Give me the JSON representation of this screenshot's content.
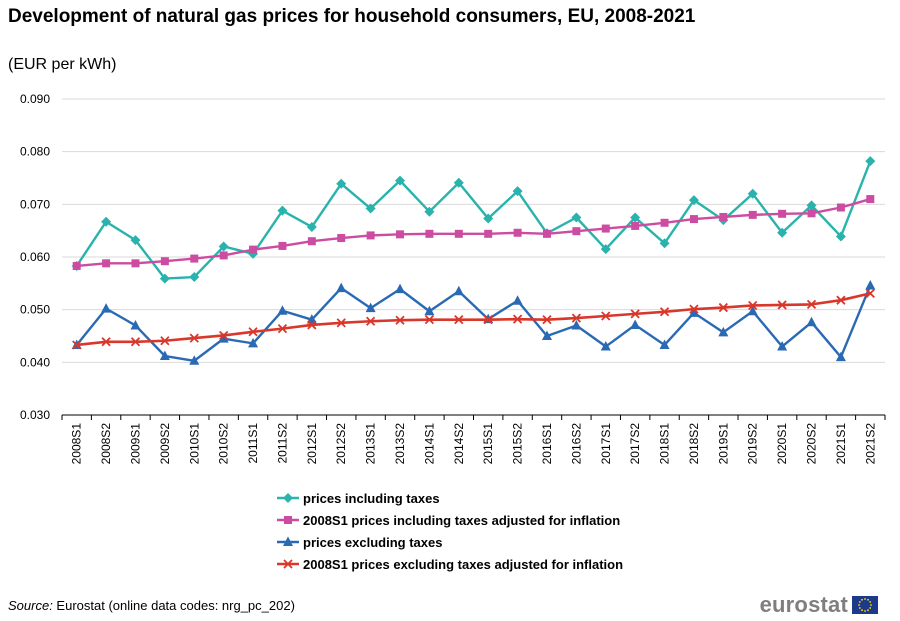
{
  "header": {
    "title": "Development of natural gas prices for household consumers, EU, 2008-2021",
    "subtitle": "(EUR per kWh)"
  },
  "footer": {
    "source_label": "Source:",
    "source_text": " Eurostat (online data codes: nrg_pc_202)",
    "logo_text": "eurostat"
  },
  "chart_data": {
    "type": "line",
    "title": "Development of natural gas prices for household consumers, EU, 2008-2021",
    "subtitle": "(EUR per kWh)",
    "xlabel": "",
    "ylabel": "",
    "ylim": [
      0.03,
      0.09
    ],
    "yticks": [
      "0.030",
      "0.040",
      "0.050",
      "0.060",
      "0.070",
      "0.080",
      "0.090"
    ],
    "grid": true,
    "legend_position": "bottom",
    "categories": [
      "2008S1",
      "2008S2",
      "2009S1",
      "2009S2",
      "2010S1",
      "2010S2",
      "2011S1",
      "2011S2",
      "2012S1",
      "2012S2",
      "2013S1",
      "2013S2",
      "2014S1",
      "2014S2",
      "2015S1",
      "2015S2",
      "2016S1",
      "2016S2",
      "2017S1",
      "2017S2",
      "2018S1",
      "2018S2",
      "2019S1",
      "2019S2",
      "2020S1",
      "2020S2",
      "2021S1",
      "2021S2"
    ],
    "series": [
      {
        "name": "prices including taxes",
        "color": "#2ab3ac",
        "marker": "diamond",
        "values": [
          0.0583,
          0.0667,
          0.0632,
          0.0559,
          0.0562,
          0.062,
          0.0606,
          0.0688,
          0.0657,
          0.0739,
          0.0692,
          0.0745,
          0.0686,
          0.0741,
          0.0673,
          0.0725,
          0.0645,
          0.0675,
          0.0615,
          0.0675,
          0.0626,
          0.0708,
          0.067,
          0.072,
          0.0646,
          0.0698,
          0.0639,
          0.0782
        ]
      },
      {
        "name": "2008S1 prices including taxes adjusted for inflation",
        "color": "#cb4ca1",
        "marker": "square",
        "values": [
          0.0583,
          0.0588,
          0.0588,
          0.0592,
          0.0597,
          0.0603,
          0.0614,
          0.0621,
          0.063,
          0.0636,
          0.0641,
          0.0643,
          0.0644,
          0.0644,
          0.0644,
          0.0646,
          0.0644,
          0.0649,
          0.0654,
          0.0659,
          0.0665,
          0.0672,
          0.0676,
          0.068,
          0.0682,
          0.0683,
          0.0694,
          0.071
        ]
      },
      {
        "name": "prices excluding taxes",
        "color": "#2a6ab4",
        "marker": "triangle",
        "values": [
          0.0433,
          0.0502,
          0.047,
          0.0412,
          0.0403,
          0.0445,
          0.0436,
          0.0498,
          0.0481,
          0.0541,
          0.0503,
          0.0539,
          0.0497,
          0.0535,
          0.0482,
          0.0517,
          0.045,
          0.047,
          0.043,
          0.0471,
          0.0433,
          0.0494,
          0.0457,
          0.0497,
          0.043,
          0.0476,
          0.041,
          0.0546
        ]
      },
      {
        "name": "2008S1 prices excluding taxes adjusted for inflation",
        "color": "#d9372b",
        "marker": "x",
        "values": [
          0.0433,
          0.0439,
          0.0439,
          0.0441,
          0.0446,
          0.0451,
          0.0458,
          0.0464,
          0.0471,
          0.0475,
          0.0478,
          0.048,
          0.0481,
          0.0481,
          0.0481,
          0.0482,
          0.0481,
          0.0484,
          0.0488,
          0.0492,
          0.0496,
          0.0501,
          0.0504,
          0.0508,
          0.0509,
          0.051,
          0.0518,
          0.0531
        ]
      }
    ]
  }
}
